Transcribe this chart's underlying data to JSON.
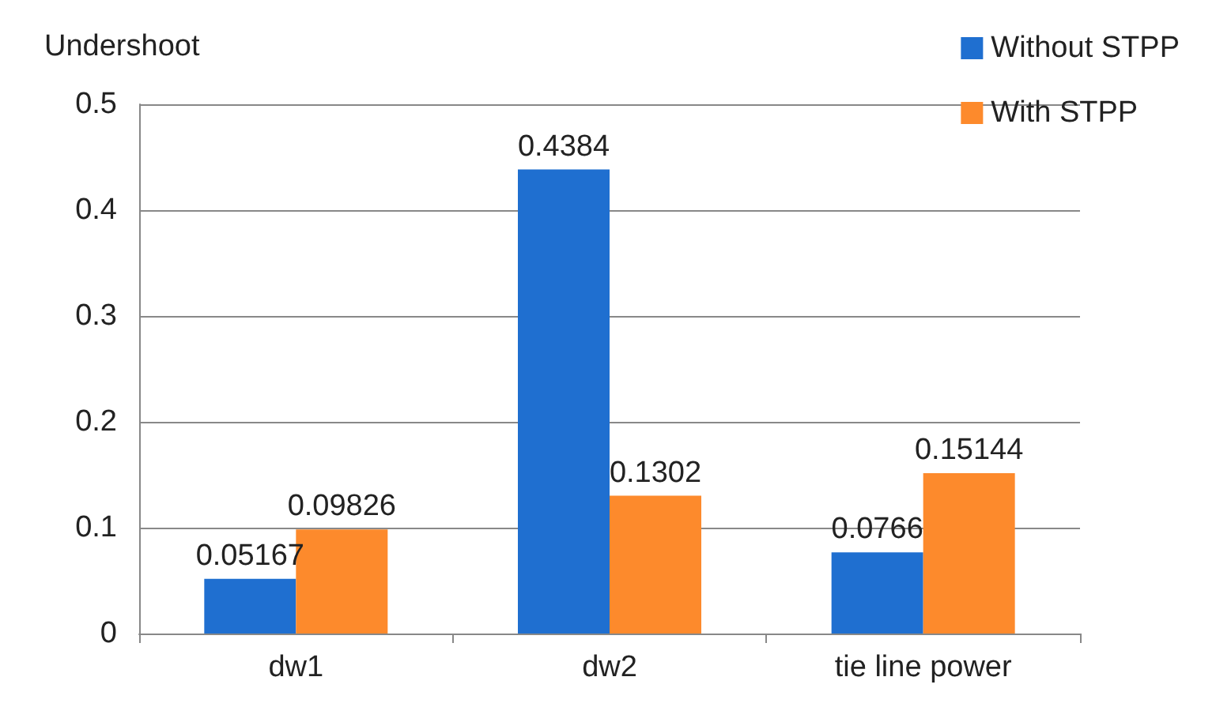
{
  "chart_data": {
    "type": "bar",
    "ylabel": "Undershoot",
    "categories": [
      "dw1",
      "dw2",
      "tie line power"
    ],
    "series": [
      {
        "name": "Without STPP",
        "color": "#1f6fd0",
        "values": [
          0.05167,
          0.4384,
          0.0766
        ]
      },
      {
        "name": "With STPP",
        "color": "#fd8a2c",
        "values": [
          0.09826,
          0.1302,
          0.15144
        ]
      }
    ],
    "ylim": [
      0,
      0.5
    ],
    "yticks": [
      0,
      0.1,
      0.2,
      0.3,
      0.4,
      0.5
    ],
    "grid": "y",
    "legend": "top right",
    "data_labels": true
  }
}
